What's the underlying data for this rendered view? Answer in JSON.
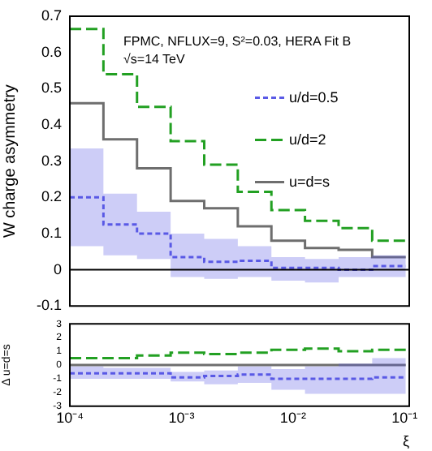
{
  "chart_data": [
    {
      "type": "step",
      "ylabel": "W charge asymmetry",
      "annotations": [
        "FPMC, NFLUX=9, S²=0.03, HERA Fit B",
        "√s=14 TeV"
      ],
      "x": [
        0.0001,
        0.0002,
        0.0004,
        0.0008,
        0.0016,
        0.0032,
        0.0064,
        0.0128,
        0.0256,
        0.0512,
        0.1024
      ],
      "series": [
        {
          "name": "u/d=0.5",
          "color": "#5a5ae6",
          "line_style": "dotted",
          "values": [
            0.2,
            0.125,
            0.1,
            0.035,
            0.022,
            0.025,
            0.005,
            0.005,
            0.0,
            0.01,
            0.01
          ],
          "lower": [
            0.065,
            0.04,
            0.03,
            -0.02,
            -0.025,
            -0.02,
            -0.03,
            -0.035,
            -0.02,
            -0.02,
            -0.02
          ],
          "upper": [
            0.335,
            0.21,
            0.16,
            0.1,
            0.085,
            0.065,
            0.035,
            0.03,
            0.035,
            0.04,
            0.04
          ]
        },
        {
          "name": "u/d=2",
          "color": "#22a022",
          "line_style": "dashed",
          "values": [
            0.665,
            0.54,
            0.45,
            0.355,
            0.29,
            0.215,
            0.165,
            0.135,
            0.115,
            0.08,
            0.08
          ]
        },
        {
          "name": "u=d=s",
          "color": "#6e6e6e",
          "line_style": "solid",
          "values": [
            0.46,
            0.36,
            0.28,
            0.19,
            0.17,
            0.12,
            0.08,
            0.06,
            0.055,
            0.035,
            0.035
          ]
        }
      ],
      "log": "x",
      "xlim": [
        0.0001,
        0.11
      ],
      "xticks": [
        {
          "value": 0.0001,
          "label": null
        },
        {
          "value": 0.001,
          "label": null
        },
        {
          "value": 0.01,
          "label": null
        },
        {
          "value": 0.1,
          "label": null
        }
      ],
      "ylim": [
        -0.1,
        0.7
      ],
      "yticks": [
        -0.1,
        0,
        0.1,
        0.2,
        0.3,
        0.4,
        0.5,
        0.6,
        0.7
      ],
      "ref_lines": [
        {
          "axis": "y",
          "value": 0,
          "color": "#000000"
        }
      ],
      "legend": "right",
      "tick_labels": "y"
    },
    {
      "type": "step",
      "ylabel": "Δ u=d=s",
      "xlabel": "ξ",
      "x": [
        0.0001,
        0.0002,
        0.0004,
        0.0008,
        0.0016,
        0.0032,
        0.0064,
        0.0128,
        0.0256,
        0.0512,
        0.1024
      ],
      "series": [
        {
          "color": "#5a5ae6",
          "line_style": "dotted",
          "values": [
            -0.6,
            -0.6,
            -0.6,
            -0.9,
            -0.8,
            -0.7,
            -1.0,
            -1.0,
            -1.0,
            -0.9,
            -0.9
          ],
          "lower": [
            -1.0,
            -1.0,
            -1.0,
            -1.2,
            -1.4,
            -1.3,
            -1.8,
            -2.1,
            -2.1,
            -2.1,
            -2.1
          ],
          "upper": [
            -0.1,
            -0.2,
            -0.2,
            -0.5,
            -0.4,
            -0.1,
            -0.3,
            -0.1,
            0.1,
            0.5,
            0.5
          ]
        },
        {
          "color": "#22a022",
          "line_style": "dashed",
          "values": [
            0.5,
            0.5,
            0.7,
            0.9,
            0.8,
            0.9,
            1.1,
            1.2,
            1.0,
            1.1,
            1.1
          ]
        },
        {
          "color": "#6e6e6e",
          "line_style": "solid",
          "values": [
            0,
            0,
            0,
            0,
            0,
            0,
            0,
            0,
            0,
            0,
            0
          ]
        }
      ],
      "log": "x",
      "xlim": [
        0.0001,
        0.11
      ],
      "xticks": [
        {
          "value": 0.0001,
          "label": "10⁻⁴"
        },
        {
          "value": 0.001,
          "label": "10⁻³"
        },
        {
          "value": 0.01,
          "label": "10⁻²"
        },
        {
          "value": 0.1,
          "label": "10⁻¹"
        }
      ],
      "ylim": [
        -3,
        3
      ],
      "yticks": [
        -3,
        -2,
        -1,
        0,
        1,
        2,
        3
      ]
    }
  ]
}
